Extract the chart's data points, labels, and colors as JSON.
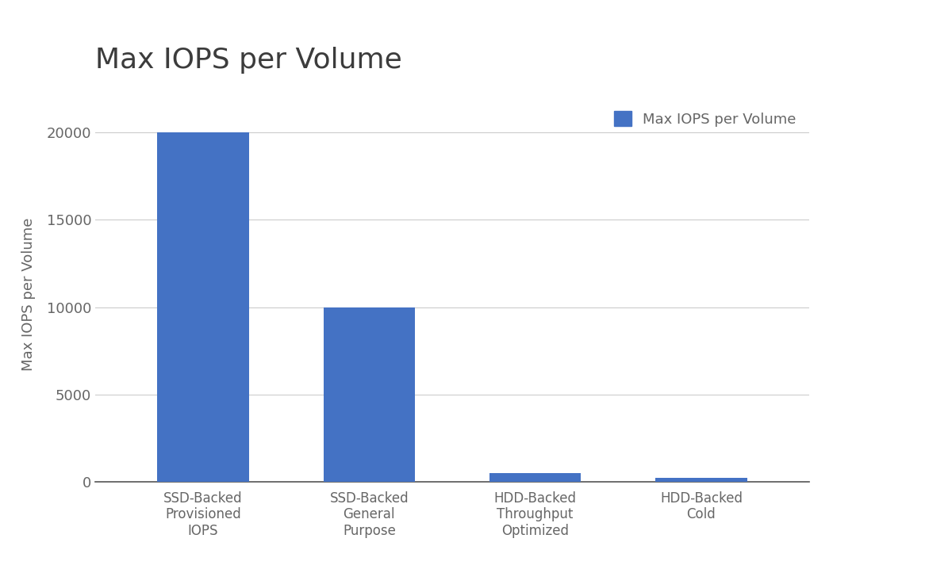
{
  "title": "Max IOPS per Volume",
  "title_fontsize": 26,
  "title_color": "#3c3c3c",
  "categories": [
    "SSD-Backed\nProvisioned\nIOPS",
    "SSD-Backed\nGeneral\nPurpose",
    "HDD-Backed\nThroughput\nOptimized",
    "HDD-Backed\nCold"
  ],
  "values": [
    20000,
    10000,
    500,
    250
  ],
  "bar_color": "#4472C4",
  "ylabel": "Max IOPS per Volume",
  "ylabel_fontsize": 13,
  "ylabel_color": "#666666",
  "ylim": [
    0,
    21500
  ],
  "yticks": [
    0,
    5000,
    10000,
    15000,
    20000
  ],
  "ytick_labels": [
    "0",
    "5000",
    "10000",
    "15000",
    "20000"
  ],
  "ytick_fontsize": 13,
  "xtick_fontsize": 12,
  "xtick_color": "#666666",
  "ytick_color": "#666666",
  "legend_label": "Max IOPS per Volume",
  "legend_fontsize": 13,
  "grid_color": "#cccccc",
  "background_color": "#ffffff",
  "bar_width": 0.55
}
